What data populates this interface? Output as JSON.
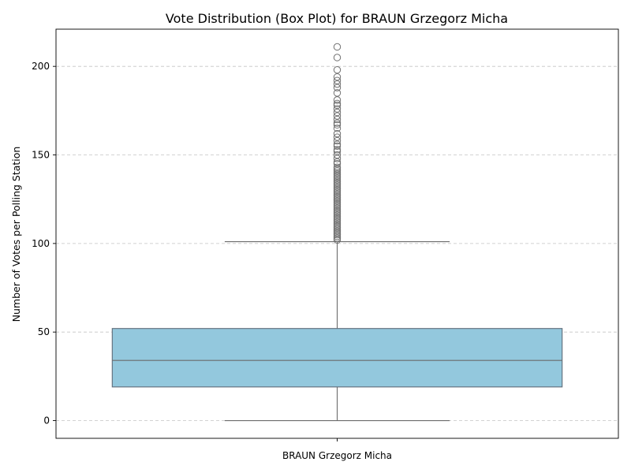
{
  "chart_data": {
    "type": "box",
    "title": "Vote Distribution (Box Plot) for BRAUN Grzegorz Micha",
    "xlabel": "",
    "ylabel": "Number of Votes per Polling Station",
    "categories": [
      "BRAUN Grzegorz Micha"
    ],
    "ylim": [
      -10,
      221
    ],
    "yticks": [
      0,
      50,
      100,
      150,
      200
    ],
    "grid": "y-dashed",
    "box_color": "#93c8dd",
    "series": [
      {
        "category": "BRAUN Grzegorz Micha",
        "min": 0,
        "q1": 19,
        "median": 34,
        "q3": 52,
        "max": 101,
        "outliers": [
          102,
          103,
          104,
          105,
          106,
          107,
          108,
          109,
          110,
          111,
          112,
          113,
          114,
          115,
          116,
          117,
          118,
          119,
          120,
          121,
          122,
          123,
          124,
          125,
          126,
          127,
          128,
          129,
          130,
          131,
          132,
          133,
          134,
          135,
          136,
          137,
          138,
          139,
          140,
          141,
          142,
          143,
          145,
          146,
          148,
          150,
          152,
          153,
          155,
          156,
          158,
          160,
          162,
          165,
          167,
          168,
          170,
          172,
          174,
          176,
          178,
          179,
          181,
          185,
          188,
          190,
          192,
          194,
          198,
          205,
          211
        ]
      }
    ]
  }
}
